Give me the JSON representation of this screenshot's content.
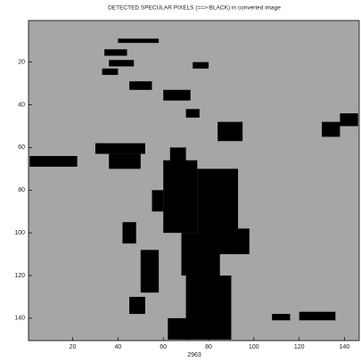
{
  "chart_data": {
    "type": "image",
    "title": "DETECTED SPECULAR PIXELS (==> BLACK) in converted image",
    "xlabel": "2963",
    "xlim": [
      0.5,
      146.5
    ],
    "ylim": [
      0.5,
      150.5
    ],
    "y_reversed": true,
    "xticks": [
      20,
      40,
      60,
      80,
      100,
      120,
      140
    ],
    "yticks": [
      20,
      40,
      60,
      80,
      100,
      120,
      140
    ],
    "background_color": "#a6a6a6",
    "pixel_color": "#000000",
    "black_regions": [
      [
        40,
        9,
        58,
        11
      ],
      [
        34,
        14,
        44,
        17
      ],
      [
        36,
        19,
        47,
        22
      ],
      [
        33,
        23,
        40,
        26
      ],
      [
        45,
        29,
        55,
        33
      ],
      [
        60,
        33,
        72,
        38
      ],
      [
        70,
        42,
        76,
        46
      ],
      [
        73,
        20,
        80,
        23
      ],
      [
        1,
        64,
        22,
        69
      ],
      [
        30,
        58,
        52,
        63
      ],
      [
        36,
        63,
        50,
        70
      ],
      [
        84,
        48,
        95,
        57
      ],
      [
        130,
        48,
        138,
        55
      ],
      [
        138,
        44,
        146,
        50
      ],
      [
        60,
        66,
        75,
        100
      ],
      [
        63,
        60,
        70,
        67
      ],
      [
        75,
        70,
        93,
        110
      ],
      [
        68,
        100,
        85,
        120
      ],
      [
        70,
        120,
        90,
        150
      ],
      [
        62,
        140,
        72,
        150
      ],
      [
        92,
        98,
        98,
        110
      ],
      [
        42,
        95,
        48,
        105
      ],
      [
        50,
        108,
        58,
        128
      ],
      [
        45,
        130,
        52,
        138
      ],
      [
        108,
        138,
        116,
        141
      ],
      [
        120,
        137,
        136,
        141
      ],
      [
        55,
        80,
        60,
        90
      ]
    ]
  }
}
